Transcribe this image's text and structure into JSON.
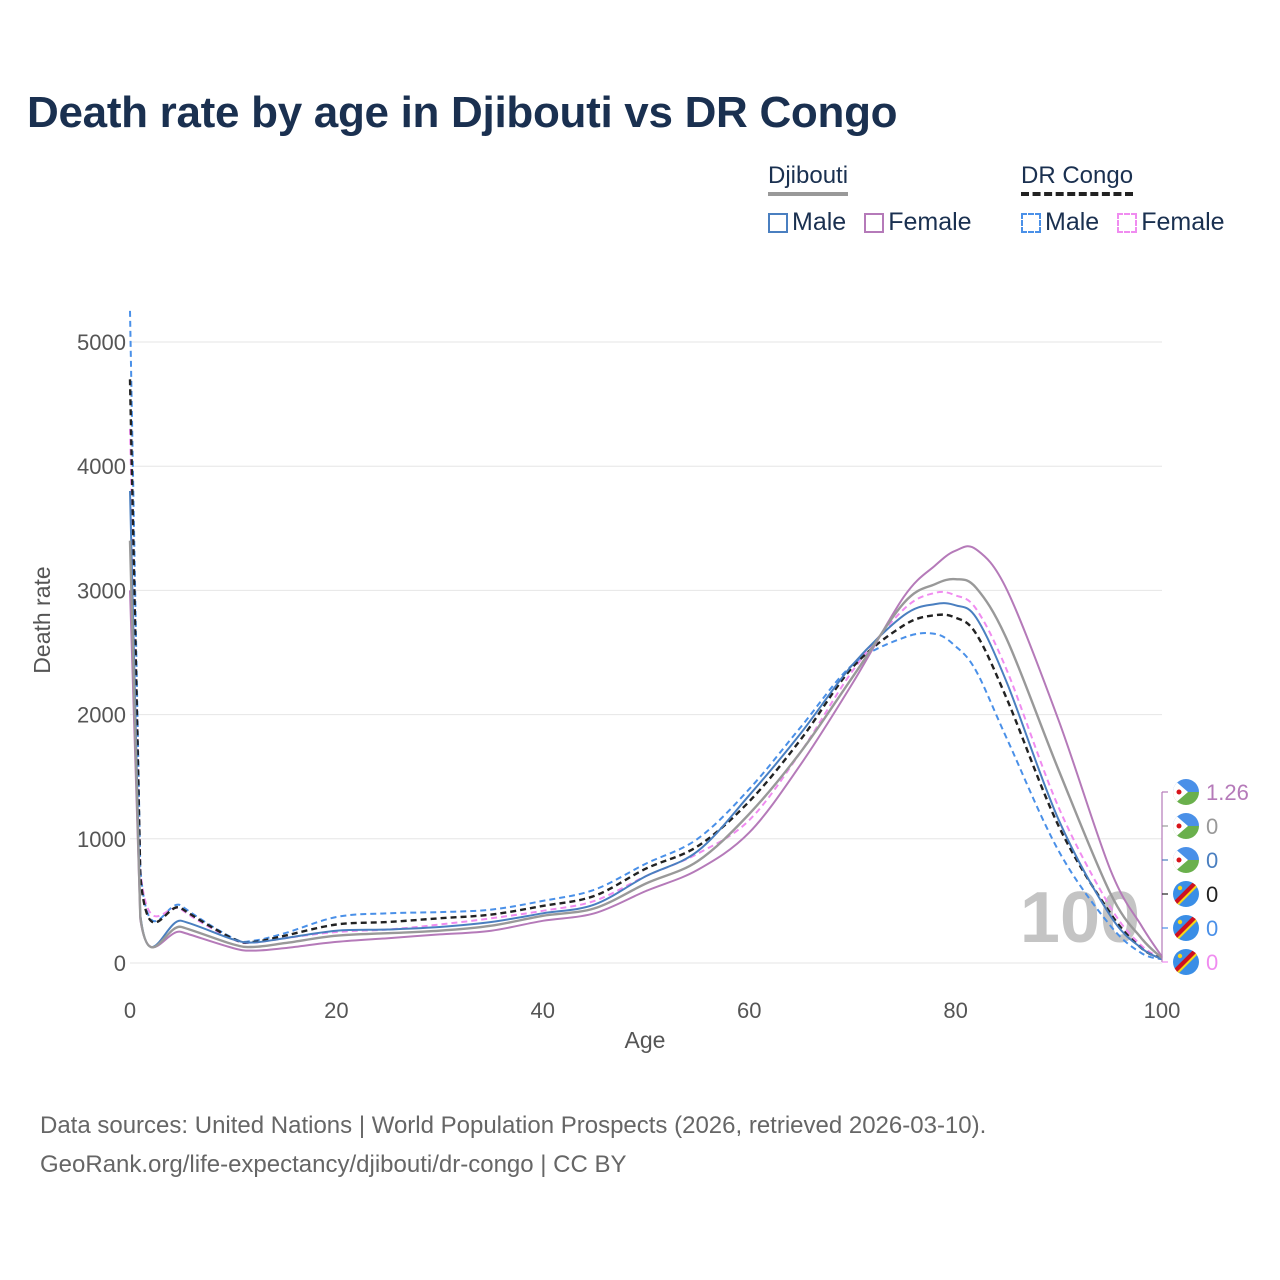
{
  "title": "Death rate by age in Djibouti vs DR Congo",
  "legend": {
    "groups": [
      {
        "name": "Djibouti",
        "items": [
          "Male",
          "Female"
        ]
      },
      {
        "name": "DR Congo",
        "items": [
          "Male",
          "Female"
        ]
      }
    ]
  },
  "colors": {
    "djibouti_male": "#4a7fc0",
    "djibouti_female": "#b57ab9",
    "djibouti_total": "#999999",
    "drc_male": "#4a90e8",
    "drc_female": "#f08cf0",
    "drc_total": "#222222"
  },
  "sources": {
    "line1": "Data sources: United Nations | World Population Prospects (2026, retrieved 2026-03-10).",
    "line2": "GeoRank.org/life-expectancy/djibouti/dr-congo | CC BY"
  },
  "year_watermark": "100",
  "end_labels": [
    {
      "country": "Djibouti",
      "series": "Female",
      "value": "1.26",
      "color": "#b57ab9"
    },
    {
      "country": "Djibouti",
      "series": "Total",
      "value": "0",
      "color": "#999999"
    },
    {
      "country": "Djibouti",
      "series": "Male",
      "value": "0",
      "color": "#4a7fc0"
    },
    {
      "country": "DR Congo",
      "series": "Total",
      "value": "0",
      "color": "#222222"
    },
    {
      "country": "DR Congo",
      "series": "Male",
      "value": "0",
      "color": "#4a90e8"
    },
    {
      "country": "DR Congo",
      "series": "Female",
      "value": "0",
      "color": "#f08cf0"
    }
  ],
  "chart_data": {
    "type": "line",
    "title": "Death rate by age in Djibouti vs DR Congo",
    "xlabel": "Age",
    "ylabel": "Death rate",
    "xlim": [
      0,
      100
    ],
    "ylim": [
      0,
      5300
    ],
    "xticks": [
      0,
      20,
      40,
      60,
      80,
      100
    ],
    "yticks": [
      0,
      1000,
      2000,
      3000,
      4000,
      5000
    ],
    "x": [
      0,
      1,
      5,
      10,
      12,
      15,
      20,
      25,
      30,
      35,
      40,
      45,
      50,
      55,
      60,
      65,
      70,
      75,
      78,
      80,
      82,
      85,
      90,
      95,
      98,
      100
    ],
    "series": [
      {
        "name": "DR Congo Male",
        "country": "DR Congo",
        "sex": "Male",
        "dashed": true,
        "color": "#4a90e8",
        "values": [
          5250,
          760,
          460,
          200,
          180,
          240,
          370,
          400,
          410,
          430,
          500,
          590,
          800,
          1000,
          1400,
          1900,
          2400,
          2620,
          2650,
          2550,
          2350,
          1800,
          900,
          300,
          80,
          30
        ]
      },
      {
        "name": "DR Congo Female",
        "country": "DR Congo",
        "sex": "Female",
        "dashed": true,
        "color": "#f08cf0",
        "values": [
          4300,
          740,
          430,
          190,
          165,
          200,
          250,
          270,
          310,
          360,
          420,
          500,
          700,
          880,
          1150,
          1700,
          2350,
          2850,
          2980,
          2960,
          2850,
          2350,
          1250,
          450,
          140,
          40
        ]
      },
      {
        "name": "DR Congo Total",
        "country": "DR Congo",
        "sex": "Total",
        "dashed": true,
        "color": "#222222",
        "values": [
          4700,
          700,
          440,
          195,
          170,
          220,
          310,
          330,
          360,
          390,
          460,
          540,
          760,
          940,
          1300,
          1800,
          2380,
          2720,
          2800,
          2780,
          2650,
          2120,
          1100,
          400,
          120,
          35
        ]
      },
      {
        "name": "Djibouti Male",
        "country": "Djibouti",
        "sex": "Male",
        "dashed": false,
        "color": "#4a7fc0",
        "values": [
          3800,
          390,
          340,
          190,
          165,
          200,
          260,
          270,
          290,
          330,
          400,
          470,
          700,
          900,
          1350,
          1850,
          2400,
          2800,
          2890,
          2880,
          2780,
          2250,
          1150,
          380,
          120,
          30
        ]
      },
      {
        "name": "Djibouti Female",
        "country": "Djibouti",
        "sex": "Female",
        "dashed": false,
        "color": "#b57ab9",
        "values": [
          3000,
          350,
          250,
          120,
          100,
          120,
          170,
          200,
          230,
          260,
          340,
          400,
          580,
          750,
          1050,
          1600,
          2250,
          2950,
          3200,
          3320,
          3330,
          3000,
          1950,
          750,
          300,
          50
        ]
      },
      {
        "name": "Djibouti Total",
        "country": "Djibouti",
        "sex": "Total",
        "dashed": false,
        "color": "#999999",
        "values": [
          3400,
          370,
          290,
          150,
          130,
          160,
          220,
          240,
          260,
          300,
          380,
          440,
          640,
          820,
          1200,
          1700,
          2300,
          2900,
          3050,
          3090,
          3020,
          2600,
          1550,
          560,
          200,
          40
        ]
      }
    ]
  }
}
